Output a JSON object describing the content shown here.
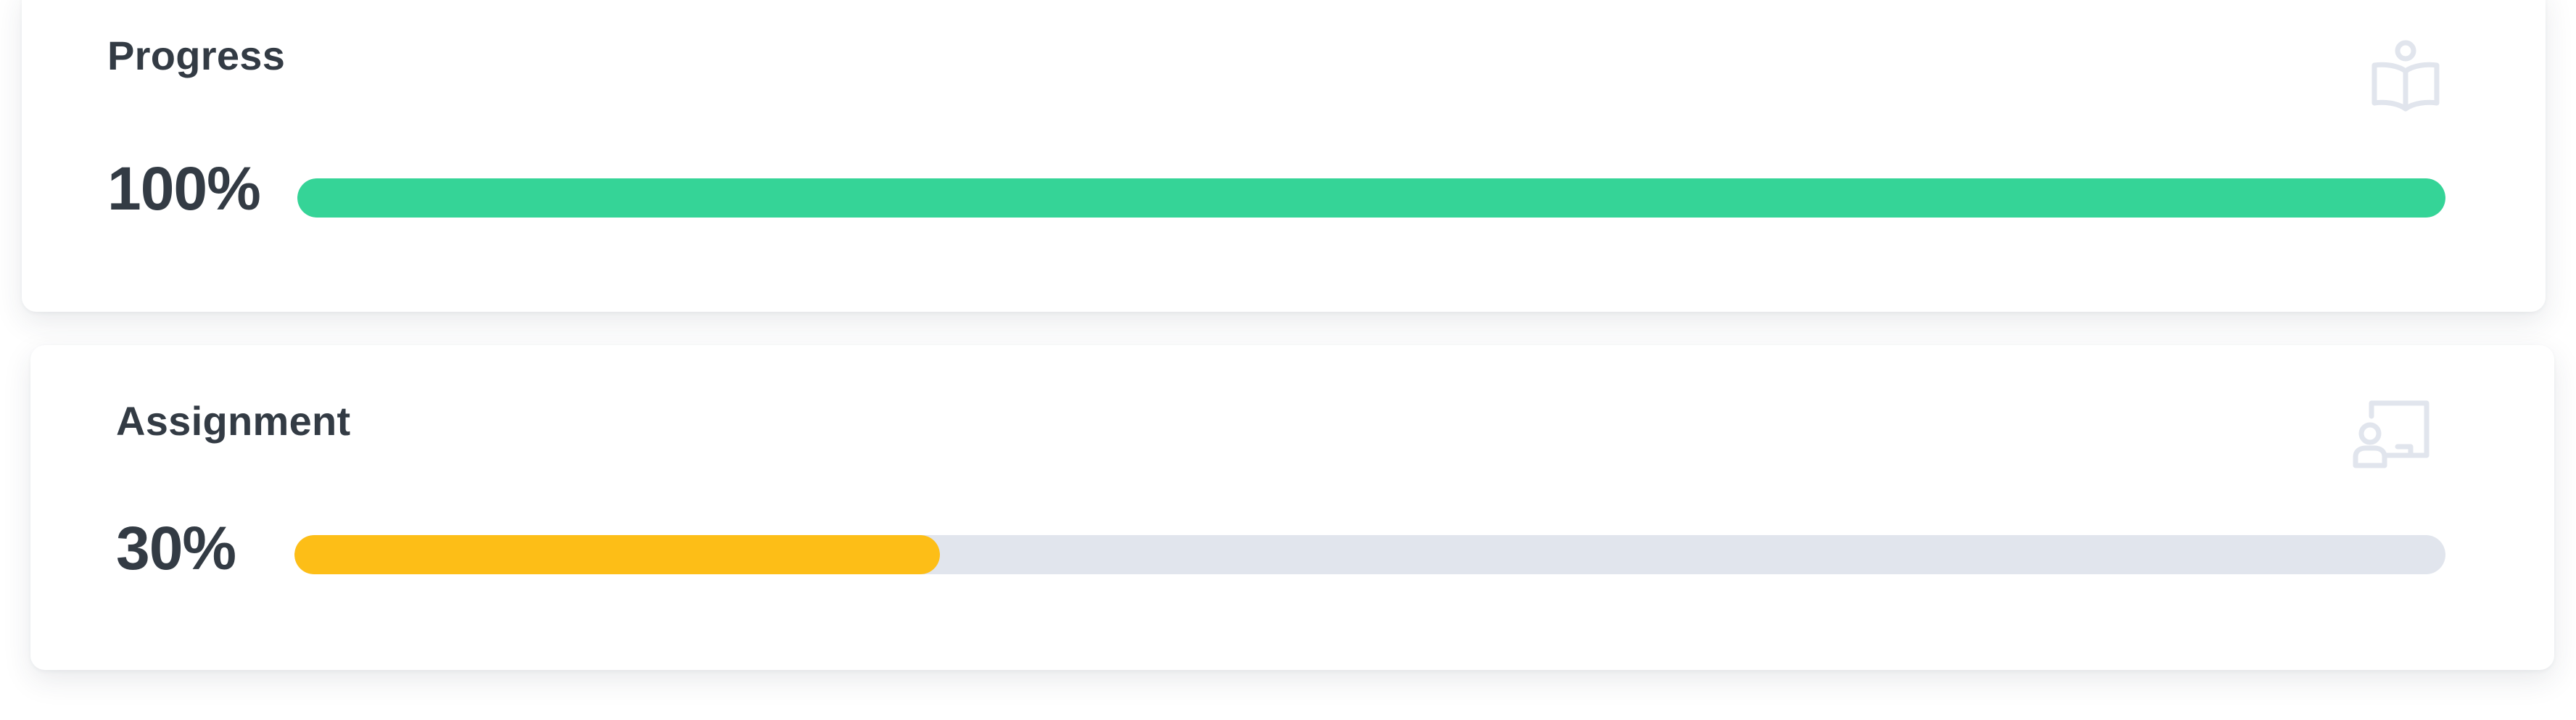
{
  "cards": [
    {
      "title": "Progress",
      "percent_label": "100%",
      "value": 1.0,
      "bar_color": "#35d497",
      "track_color": "#e1e5ed",
      "icon": "book-reader-icon"
    },
    {
      "title": "Assignment",
      "percent_label": "30%",
      "value": 0.3,
      "bar_color": "#fdbe17",
      "track_color": "#e1e5ed",
      "icon": "presentation-board-icon"
    }
  ]
}
